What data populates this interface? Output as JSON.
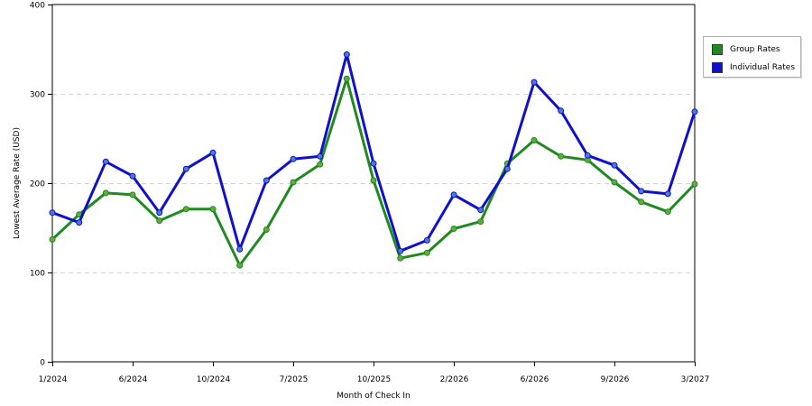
{
  "chart_data": {
    "type": "line",
    "xlabel": "Month of Check In",
    "ylabel": "Lowest Average Rate (USD)",
    "ylim": [
      0,
      400
    ],
    "yticks": [
      0,
      100,
      200,
      300,
      400
    ],
    "grid": "horizontal dashed",
    "legend_position": "right",
    "x_tick_labels": [
      "1/2024",
      "6/2024",
      "10/2024",
      "7/2025",
      "10/2025",
      "2/2026",
      "6/2026",
      "9/2026",
      "3/2027"
    ],
    "x_tick_index": [
      0,
      3,
      6,
      9,
      12,
      15,
      18,
      21,
      24
    ],
    "series": [
      {
        "name": "Group Rates",
        "color": "#1f8a1f",
        "marker_color": "#66a840",
        "values": [
          137,
          165,
          189,
          187,
          158,
          171,
          171,
          108,
          148,
          201,
          221,
          317,
          203,
          116,
          122,
          149,
          157,
          222,
          248,
          230,
          226,
          201,
          179,
          168,
          199
        ]
      },
      {
        "name": "Individual Rates",
        "color": "#1010cc",
        "marker_color": "#4a7cd0",
        "values": [
          167,
          156,
          224,
          208,
          167,
          216,
          234,
          126,
          203,
          227,
          230,
          344,
          222,
          124,
          136,
          187,
          170,
          216,
          313,
          281,
          231,
          220,
          191,
          188,
          280
        ]
      }
    ]
  }
}
